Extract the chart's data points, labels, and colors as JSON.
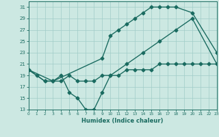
{
  "xlabel": "Humidex (Indice chaleur)",
  "bg_color": "#cce8e2",
  "grid_color": "#a0ccc8",
  "line_color": "#1a6b60",
  "xlim": [
    0,
    23
  ],
  "ylim": [
    13,
    32
  ],
  "xticks": [
    0,
    1,
    2,
    3,
    4,
    5,
    6,
    7,
    8,
    9,
    10,
    11,
    12,
    13,
    14,
    15,
    16,
    17,
    18,
    19,
    20,
    21,
    22,
    23
  ],
  "yticks": [
    13,
    15,
    17,
    19,
    21,
    23,
    25,
    27,
    29,
    31
  ],
  "line1_x": [
    0,
    1,
    2,
    3,
    9,
    10,
    11,
    12,
    13,
    14,
    15,
    16,
    17,
    18,
    20,
    23
  ],
  "line1_y": [
    20,
    19,
    18,
    18,
    22,
    26,
    27,
    28,
    29,
    30,
    31,
    31,
    31,
    31,
    30,
    23
  ],
  "line2_x": [
    0,
    3,
    4,
    5,
    6,
    7,
    8,
    9,
    10,
    11,
    12,
    13,
    14,
    15,
    16,
    17,
    18,
    19,
    20,
    21,
    22,
    23
  ],
  "line2_y": [
    20,
    18,
    18,
    19,
    18,
    18,
    18,
    19,
    19,
    19,
    20,
    20,
    20,
    20,
    21,
    21,
    21,
    21,
    21,
    21,
    21,
    21
  ],
  "line3_x": [
    0,
    2,
    3,
    4,
    5,
    6,
    7,
    8,
    9,
    10,
    12,
    14,
    16,
    18,
    20,
    23
  ],
  "line3_y": [
    20,
    18,
    18,
    19,
    16,
    15,
    13,
    13,
    16,
    19,
    21,
    23,
    25,
    27,
    29,
    21
  ]
}
